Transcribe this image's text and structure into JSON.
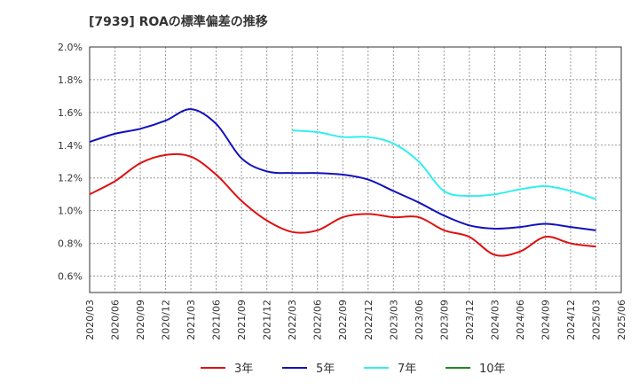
{
  "chart_data": {
    "type": "line",
    "title": "[7939]  ROAの標準偏差の推移",
    "xlabel": "",
    "ylabel": "",
    "ylim": [
      0.5,
      2.0
    ],
    "yticks": [
      0.6,
      0.8,
      1.0,
      1.2,
      1.4,
      1.6,
      1.8,
      2.0
    ],
    "ytick_labels": [
      "0.6%",
      "0.8%",
      "1.0%",
      "1.2%",
      "1.4%",
      "1.6%",
      "1.8%",
      "2.0%"
    ],
    "x": [
      "2020/03",
      "2020/06",
      "2020/09",
      "2020/12",
      "2021/03",
      "2021/06",
      "2021/09",
      "2021/12",
      "2022/03",
      "2022/06",
      "2022/09",
      "2022/12",
      "2023/03",
      "2023/06",
      "2023/09",
      "2023/12",
      "2024/03",
      "2024/06",
      "2024/09",
      "2024/12",
      "2025/03",
      "2025/06"
    ],
    "grid": true,
    "legend_position": "bottom",
    "series": [
      {
        "name": "3年",
        "color": "#dd1111",
        "values": [
          1.1,
          1.18,
          1.29,
          1.34,
          1.33,
          1.22,
          1.06,
          0.94,
          0.87,
          0.88,
          0.96,
          0.98,
          0.96,
          0.96,
          0.88,
          0.84,
          0.73,
          0.75,
          0.84,
          0.8,
          0.78,
          null
        ]
      },
      {
        "name": "5年",
        "color": "#1111bb",
        "values": [
          1.42,
          1.47,
          1.5,
          1.55,
          1.62,
          1.53,
          1.32,
          1.24,
          1.23,
          1.23,
          1.22,
          1.19,
          1.12,
          1.05,
          0.97,
          0.91,
          0.89,
          0.9,
          0.92,
          0.9,
          0.88,
          null
        ]
      },
      {
        "name": "7年",
        "color": "#33eeee",
        "values": [
          null,
          null,
          null,
          null,
          null,
          null,
          null,
          null,
          1.49,
          1.48,
          1.45,
          1.45,
          1.41,
          1.3,
          1.12,
          1.09,
          1.1,
          1.13,
          1.15,
          1.12,
          1.07,
          null
        ]
      },
      {
        "name": "10年",
        "color": "#228822",
        "values": [
          null,
          null,
          null,
          null,
          null,
          null,
          null,
          null,
          null,
          null,
          null,
          null,
          null,
          null,
          null,
          null,
          null,
          null,
          null,
          null,
          null,
          null
        ]
      }
    ]
  }
}
